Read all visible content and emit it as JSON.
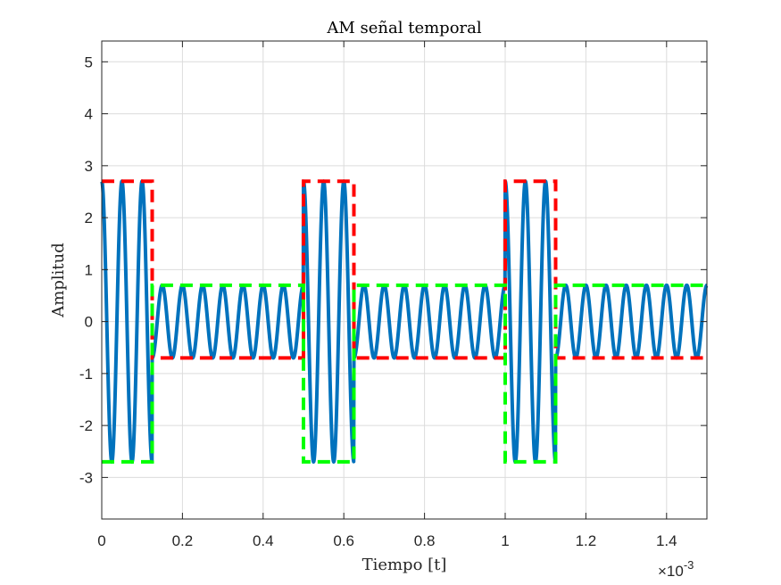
{
  "chart_data": {
    "type": "line",
    "title": "AM señal temporal",
    "xlabel": "Tiempo [t]",
    "ylabel": "Amplitud",
    "x_exponent_label": "×10",
    "x_exponent_power": "-3",
    "xlim": [
      0,
      1.5
    ],
    "ylim": [
      -3.8,
      5.4
    ],
    "x_ticks": [
      0,
      0.2,
      0.4,
      0.6,
      0.8,
      1,
      1.2,
      1.4
    ],
    "x_tick_labels": [
      "0",
      "0.2",
      "0.4",
      "0.6",
      "0.8",
      "1",
      "1.2",
      "1.4"
    ],
    "y_ticks": [
      -3,
      -2,
      -1,
      0,
      1,
      2,
      3,
      4,
      5
    ],
    "y_tick_labels": [
      "-3",
      "-2",
      "-1",
      "0",
      "1",
      "2",
      "3",
      "4",
      "5"
    ],
    "grid": true,
    "series": [
      {
        "kind": "carrier",
        "color": "#0072BD",
        "style": "solid",
        "amplitude_high": 2.7,
        "amplitude_low": 0.7,
        "frequency": 20,
        "high_intervals": [
          [
            0,
            0.125
          ],
          [
            0.5,
            0.625
          ],
          [
            1.0,
            1.125
          ]
        ]
      },
      {
        "kind": "envelope_upper",
        "color": "#FF0000",
        "style": "dashed",
        "x": [
          0,
          0.125,
          0.125,
          0.5,
          0.5,
          0.625,
          0.625,
          1.0,
          1.0,
          1.125,
          1.125,
          1.5
        ],
        "y": [
          2.7,
          2.7,
          -0.7,
          -0.7,
          2.7,
          2.7,
          -0.7,
          -0.7,
          2.7,
          2.7,
          -0.7,
          -0.7
        ]
      },
      {
        "kind": "envelope_lower",
        "color": "#00FF00",
        "style": "dashed",
        "x": [
          0,
          0.125,
          0.125,
          0.5,
          0.5,
          0.625,
          0.625,
          1.0,
          1.0,
          1.125,
          1.125,
          1.5
        ],
        "y": [
          -2.7,
          -2.7,
          0.7,
          0.7,
          -2.7,
          -2.7,
          0.7,
          0.7,
          -2.7,
          -2.7,
          0.7,
          0.7
        ]
      }
    ]
  }
}
